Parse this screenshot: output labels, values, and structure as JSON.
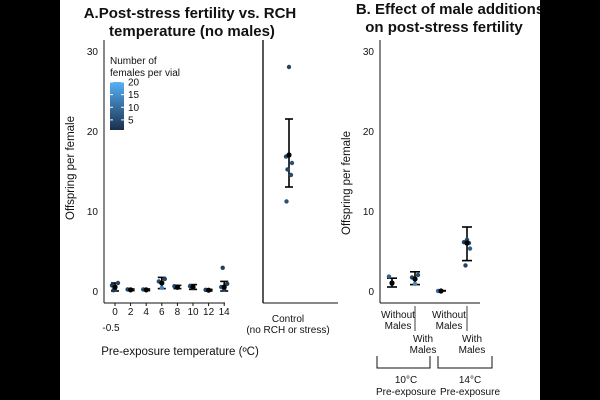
{
  "chart_data": [
    {
      "type": "scatter",
      "title_line1": "A.Post-stress fertility vs. RCH",
      "title_line2": "temperature (no males)",
      "xlabel": "Pre-exposure temperature (ºC)",
      "ylabel": "Offspring per female",
      "ylim": [
        0,
        30
      ],
      "yticks": [
        "0",
        "10",
        "20",
        "30"
      ],
      "x_minor_label": "-0.5",
      "control_label_lines": [
        "Control",
        "(no RCH or stress)"
      ],
      "legend": {
        "title_lines": [
          "Number of",
          "females per vial"
        ],
        "levels": [
          "20",
          "15",
          "10",
          "5"
        ]
      },
      "groups": [
        {
          "label": "0",
          "x": 0,
          "mean": 0.5,
          "low": 0.0,
          "high": 1.0,
          "points": [
            {
              "y": 0.2,
              "n": 5
            },
            {
              "y": 0.7,
              "n": 3
            },
            {
              "y": 1.0,
              "n": 4
            },
            {
              "y": 0.1,
              "n": 2
            }
          ]
        },
        {
          "label": "2",
          "x": 2,
          "mean": 0.15,
          "low": 0.05,
          "high": 0.25,
          "points": [
            {
              "y": 0.1,
              "n": 5
            },
            {
              "y": 0.2,
              "n": 4
            }
          ]
        },
        {
          "label": "4",
          "x": 4,
          "mean": 0.15,
          "low": 0.05,
          "high": 0.25,
          "points": [
            {
              "y": 0.1,
              "n": 4
            },
            {
              "y": 0.2,
              "n": 5
            }
          ]
        },
        {
          "label": "6",
          "x": 6,
          "mean": 1.0,
          "low": 0.3,
          "high": 1.7,
          "points": [
            {
              "y": 0.4,
              "n": 14
            },
            {
              "y": 1.2,
              "n": 5
            },
            {
              "y": 1.5,
              "n": 4
            }
          ]
        },
        {
          "label": "8",
          "x": 8,
          "mean": 0.5,
          "low": 0.3,
          "high": 0.7,
          "points": [
            {
              "y": 0.4,
              "n": 5
            },
            {
              "y": 0.6,
              "n": 4
            }
          ]
        },
        {
          "label": "10",
          "x": 10,
          "mean": 0.5,
          "low": 0.2,
          "high": 0.8,
          "points": [
            {
              "y": 0.4,
              "n": 8
            },
            {
              "y": 0.6,
              "n": 5
            }
          ]
        },
        {
          "label": "12",
          "x": 12,
          "mean": 0.1,
          "low": 0.0,
          "high": 0.2,
          "points": [
            {
              "y": 0.1,
              "n": 5
            },
            {
              "y": 0.15,
              "n": 4
            }
          ]
        },
        {
          "label": "14",
          "x": 14,
          "mean": 0.5,
          "low": 0.0,
          "high": 1.2,
          "points": [
            {
              "y": 0.2,
              "n": 4
            },
            {
              "y": 0.5,
              "n": 6
            },
            {
              "y": 0.9,
              "n": 3
            },
            {
              "y": 2.9,
              "n": 3
            }
          ]
        }
      ],
      "control": {
        "mean": 17.0,
        "low": 13.0,
        "high": 21.5,
        "points": [
          {
            "y": 28.0,
            "n": 4
          },
          {
            "y": 16.8,
            "n": 5
          },
          {
            "y": 16.0,
            "n": 6
          },
          {
            "y": 15.2,
            "n": 4
          },
          {
            "y": 14.5,
            "n": 5
          },
          {
            "y": 11.2,
            "n": 6
          }
        ]
      }
    },
    {
      "type": "scatter",
      "title_line1": "B. Effect of male additions",
      "title_line2": "on post-stress fertility",
      "ylabel": "Offspring per female",
      "ylim": [
        0,
        30
      ],
      "yticks": [
        "0",
        "10",
        "20",
        "30"
      ],
      "groups": [
        {
          "label_lines": [
            "Without",
            "Males"
          ],
          "mean": 1.0,
          "low": 0.5,
          "high": 1.6,
          "points": [
            {
              "y": 0.9,
              "n": 5
            },
            {
              "y": 1.8,
              "n": 8
            }
          ]
        },
        {
          "label_lines": [
            "With",
            "Males"
          ],
          "mean": 1.5,
          "low": 0.8,
          "high": 2.4,
          "points": [
            {
              "y": 0.9,
              "n": 14
            },
            {
              "y": 1.7,
              "n": 4
            },
            {
              "y": 2.0,
              "n": 5
            }
          ]
        },
        {
          "label_lines": [
            "Without",
            "Males"
          ],
          "mean": 0.0,
          "low": 0.0,
          "high": 0.05,
          "points": [
            {
              "y": 0.0,
              "n": 8
            },
            {
              "y": 0.0,
              "n": 10
            }
          ]
        },
        {
          "label_lines": [
            "With",
            "Males"
          ],
          "mean": 6.0,
          "low": 3.8,
          "high": 8.0,
          "points": [
            {
              "y": 6.4,
              "n": 5
            },
            {
              "y": 6.1,
              "n": 3
            },
            {
              "y": 5.3,
              "n": 8
            },
            {
              "y": 3.2,
              "n": 4
            },
            {
              "y": 6.0,
              "n": 6
            }
          ]
        }
      ],
      "brackets": [
        {
          "label_lines": [
            "10°C",
            "Pre-exposure"
          ]
        },
        {
          "label_lines": [
            "14°C",
            "Pre-exposure"
          ]
        }
      ]
    }
  ]
}
